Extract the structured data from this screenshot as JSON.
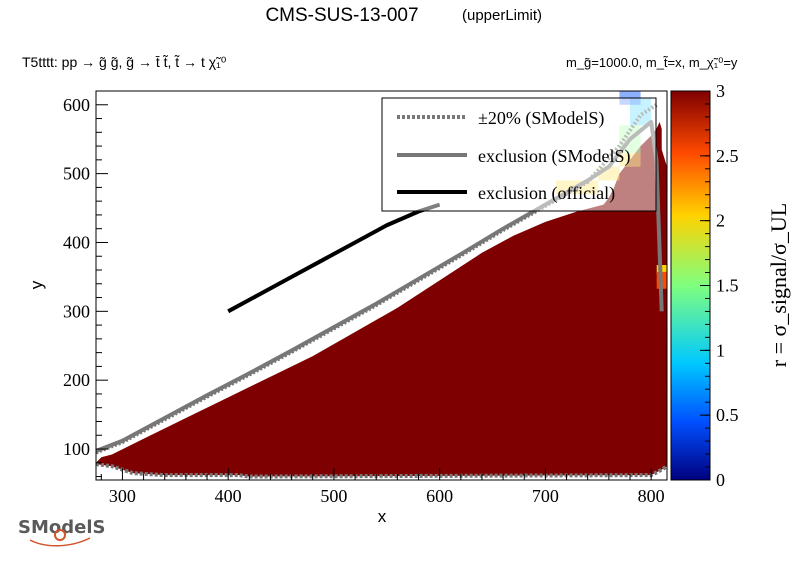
{
  "header": {
    "title": "CMS-SUS-13-007",
    "subtitle": "(upperLimit)",
    "process": "T5tttt: pp → g̃ g̃, g̃ → t̄ t̃, t̃ → t χ̃₁⁰",
    "masses": "m_g̃=1000.0, m_t̃=x, m_χ̃₁⁰=y"
  },
  "logo": {
    "text": "SModelS"
  },
  "chart_data": {
    "type": "heatmap",
    "xlabel": "x",
    "ylabel": "y",
    "zlabel": "r = σ_signal/σ_UL",
    "xlim": [
      275,
      815
    ],
    "ylim": [
      55,
      620
    ],
    "zlim": [
      0,
      3
    ],
    "x_ticks": [
      300,
      400,
      500,
      600,
      700,
      800
    ],
    "y_ticks": [
      100,
      200,
      300,
      400,
      500,
      600
    ],
    "z_ticks": [
      0,
      0.5,
      1,
      1.5,
      2,
      2.5,
      3
    ],
    "x_tick_labels": [
      "300",
      "400",
      "500",
      "600",
      "700",
      "800"
    ],
    "y_tick_labels": [
      "100",
      "200",
      "300",
      "400",
      "500",
      "600"
    ],
    "z_tick_labels": [
      "0",
      "0.5",
      "1",
      "1.5",
      "2",
      "2.5",
      "3"
    ],
    "colorscale": [
      "#00007f",
      "#0050ff",
      "#00c8ff",
      "#7fff7f",
      "#ffd200",
      "#ff4a00",
      "#7f0000"
    ],
    "fill_color": "#7f0000",
    "filled_region": [
      [
        275,
        80
      ],
      [
        280,
        88
      ],
      [
        290,
        92
      ],
      [
        320,
        115
      ],
      [
        360,
        145
      ],
      [
        400,
        175
      ],
      [
        440,
        205
      ],
      [
        480,
        235
      ],
      [
        520,
        270
      ],
      [
        560,
        305
      ],
      [
        600,
        345
      ],
      [
        640,
        385
      ],
      [
        670,
        410
      ],
      [
        700,
        430
      ],
      [
        730,
        445
      ],
      [
        755,
        455
      ],
      [
        760,
        465
      ],
      [
        765,
        480
      ],
      [
        770,
        500
      ],
      [
        780,
        520
      ],
      [
        790,
        540
      ],
      [
        800,
        555
      ],
      [
        805,
        565
      ],
      [
        808,
        575
      ],
      [
        810,
        565
      ],
      [
        810,
        535
      ],
      [
        815,
        510
      ],
      [
        815,
        55
      ],
      [
        275,
        55
      ]
    ],
    "light_cells": [
      {
        "x": 720,
        "y": 480,
        "r": 1.9
      },
      {
        "x": 740,
        "y": 480,
        "r": 1.9
      },
      {
        "x": 760,
        "y": 500,
        "r": 2.2
      },
      {
        "x": 780,
        "y": 520,
        "r": 1.8
      },
      {
        "x": 780,
        "y": 540,
        "r": 1.6
      },
      {
        "x": 780,
        "y": 560,
        "r": 1.4
      },
      {
        "x": 790,
        "y": 580,
        "r": 1.1
      },
      {
        "x": 790,
        "y": 600,
        "r": 0.9
      },
      {
        "x": 780,
        "y": 610,
        "r": 0.7
      }
    ],
    "edge_cells": [
      {
        "x": 810,
        "y": 360,
        "r": 2.0
      },
      {
        "x": 810,
        "y": 350,
        "r": 2.4
      },
      {
        "x": 810,
        "y": 340,
        "r": 2.7
      }
    ],
    "series": [
      {
        "name": "exclusion (official)",
        "style": "solid",
        "color": "#000000",
        "x": [
          400,
          430,
          460,
          490,
          520,
          550,
          580,
          600
        ],
        "y": [
          300,
          325,
          350,
          375,
          400,
          425,
          445,
          455
        ]
      },
      {
        "name": "exclusion (SModelS)",
        "style": "solid",
        "color": "#777777",
        "x": [
          275,
          300,
          340,
          380,
          420,
          460,
          500,
          540,
          580,
          620,
          660,
          700,
          740,
          760,
          770,
          780,
          800,
          805,
          810
        ],
        "y": [
          97,
          112,
          145,
          178,
          210,
          243,
          277,
          311,
          347,
          383,
          420,
          455,
          490,
          510,
          530,
          550,
          575,
          520,
          300
        ]
      },
      {
        "name": "±20% (SModelS)",
        "style": "dotted",
        "color": "#777777",
        "x": [
          275,
          300,
          340,
          380,
          420,
          460,
          500,
          540,
          580,
          620,
          660,
          700,
          740,
          770,
          790,
          805
        ],
        "y": [
          95,
          110,
          143,
          176,
          208,
          241,
          275,
          309,
          345,
          381,
          418,
          453,
          488,
          540,
          585,
          600
        ]
      }
    ],
    "bottom_band": {
      "x": [
        275,
        290,
        310,
        340,
        380,
        410,
        420,
        780,
        800,
        810,
        815
      ],
      "y": [
        78,
        75,
        65,
        62,
        62,
        62,
        60,
        62,
        62,
        70,
        75
      ]
    },
    "legend_position": "top-right"
  }
}
